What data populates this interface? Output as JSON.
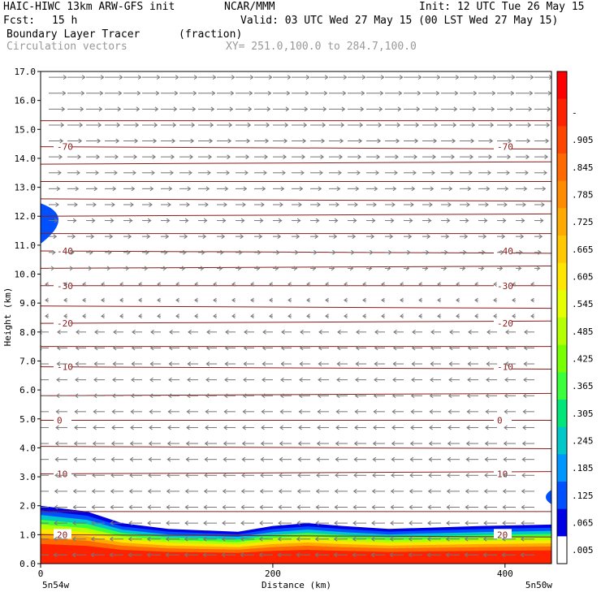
{
  "header": {
    "model": "HAIC-HIWC 13km ARW-GFS init",
    "org": "NCAR/MMM",
    "init": "Init: 12 UTC Tue 26 May 15",
    "fcst_label": "Fcst:",
    "fcst_value": "15 h",
    "valid": "Valid: 03 UTC Wed 27 May 15 (00 LST Wed 27 May 15)",
    "field": "Boundary Layer Tracer",
    "field_units": "(fraction)",
    "overlay": "Circulation vectors",
    "xy": "XY= 251.0,100.0 to 284.7,100.0"
  },
  "chart_data": {
    "type": "cross-section",
    "ylabel": "Height (km)",
    "xlabel": "Distance (km)",
    "ylim": [
      0,
      17
    ],
    "xlim": [
      0,
      440
    ],
    "y_ticks": [
      "0.0",
      "1.0",
      "2.0",
      "3.0",
      "4.0",
      "5.0",
      "6.0",
      "7.0",
      "8.0",
      "9.0",
      "10.0",
      "11.0",
      "12.0",
      "13.0",
      "14.0",
      "15.0",
      "16.0",
      "17.0"
    ],
    "x_ticks": [
      {
        "value": 0,
        "label": "0"
      },
      {
        "value": 200,
        "label": "200"
      },
      {
        "value": 400,
        "label": "400"
      }
    ],
    "left_endpoint": "5n54w",
    "right_endpoint": "5n50w",
    "colorbar": {
      "labels": [
        "-",
        ".905",
        ".845",
        ".785",
        ".725",
        ".665",
        ".605",
        ".545",
        ".485",
        ".425",
        ".365",
        ".305",
        ".245",
        ".185",
        ".125",
        ".065",
        ".005"
      ],
      "colors": [
        "#ff0000",
        "#ff2200",
        "#ff4400",
        "#ff6a00",
        "#ff8c00",
        "#ffaa00",
        "#ffc800",
        "#ffe600",
        "#e6ff00",
        "#b4ff00",
        "#78ff00",
        "#3cff3c",
        "#00e678",
        "#00c8c8",
        "#0096ff",
        "#0050ff",
        "#0000e6",
        "#ffffff"
      ]
    },
    "temperature_contours": [
      {
        "label": "-70",
        "km": 14.4
      },
      {
        "label": "-40",
        "km": 10.8
      },
      {
        "label": "-30",
        "km": 9.6
      },
      {
        "label": "-20",
        "km": 8.3
      },
      {
        "label": "-10",
        "km": 6.8
      },
      {
        "label": "0",
        "km": 4.95
      },
      {
        "label": "10",
        "km": 3.1
      },
      {
        "label": "20",
        "km": 1.0
      }
    ],
    "tracer_layer_top_km": [
      2.0,
      1.8,
      1.4,
      1.2,
      1.1,
      1.3,
      1.4,
      1.3,
      1.2,
      1.25,
      1.3,
      1.35
    ],
    "tracer_layer_top_x_km": [
      0,
      40,
      70,
      110,
      170,
      200,
      230,
      260,
      300,
      340,
      380,
      440
    ]
  }
}
